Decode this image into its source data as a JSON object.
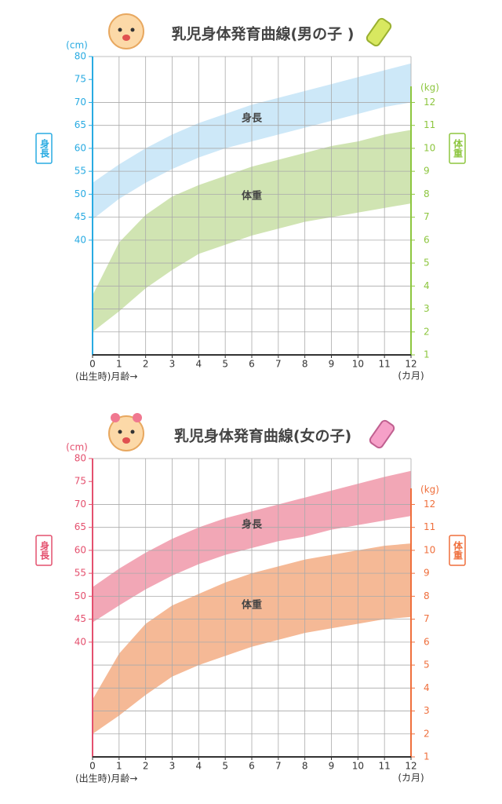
{
  "chart_data": [
    {
      "type": "band",
      "title": "乳児身体発育曲線(男の子 )",
      "xlabel": "(出生時)月齢→",
      "xunit": "(カ月)",
      "yunit": "(cm)",
      "y2unit": "(kg)",
      "ylabel": "身長",
      "y2label": "体重",
      "y_color": "#29abe2",
      "y2_color": "#8dc63f",
      "x": [
        0,
        1,
        2,
        3,
        4,
        5,
        6,
        7,
        8,
        9,
        10,
        11,
        12
      ],
      "xlim": [
        0,
        12
      ],
      "xticks": [
        0,
        1,
        2,
        3,
        4,
        5,
        6,
        7,
        8,
        9,
        10,
        11,
        12
      ],
      "ylim": [
        15,
        80
      ],
      "yticks": [
        40,
        45,
        50,
        55,
        60,
        65,
        70,
        75,
        80
      ],
      "y2lim": [
        1,
        14
      ],
      "y2ticks": [
        1,
        2,
        3,
        4,
        5,
        6,
        7,
        8,
        9,
        10,
        11,
        12
      ],
      "grid": true,
      "series": [
        {
          "name": "身長",
          "color": "#cde8f8",
          "axis": "y",
          "upper": [
            52.5,
            56.5,
            60,
            63,
            65.5,
            67.5,
            69.5,
            71,
            72.5,
            74,
            75.5,
            77,
            78.5
          ],
          "lower": [
            44.5,
            49,
            52.5,
            55.5,
            58,
            60,
            61.5,
            63,
            64.5,
            66,
            67.5,
            69,
            70
          ]
        },
        {
          "name": "体重",
          "color": "#d0e4b2",
          "axis": "y2",
          "upper": [
            3.6,
            5.9,
            7.1,
            7.9,
            8.4,
            8.8,
            9.2,
            9.5,
            9.8,
            10.1,
            10.3,
            10.6,
            10.8
          ],
          "lower": [
            2,
            2.9,
            3.9,
            4.7,
            5.4,
            5.8,
            6.2,
            6.5,
            6.8,
            7,
            7.2,
            7.4,
            7.6
          ]
        }
      ]
    },
    {
      "type": "band",
      "title": "乳児身体発育曲線(女の子)",
      "xlabel": "(出生時)月齢→",
      "xunit": "(カ月)",
      "yunit": "(cm)",
      "y2unit": "(kg)",
      "ylabel": "身長",
      "y2label": "体重",
      "y_color": "#e4506e",
      "y2_color": "#ef6f3c",
      "x": [
        0,
        1,
        2,
        3,
        4,
        5,
        6,
        7,
        8,
        9,
        10,
        11,
        12
      ],
      "xlim": [
        0,
        12
      ],
      "xticks": [
        0,
        1,
        2,
        3,
        4,
        5,
        6,
        7,
        8,
        9,
        10,
        11,
        12
      ],
      "ylim": [
        15,
        80
      ],
      "yticks": [
        40,
        45,
        50,
        55,
        60,
        65,
        70,
        75,
        80
      ],
      "y2lim": [
        1,
        14
      ],
      "y2ticks": [
        1,
        2,
        3,
        4,
        5,
        6,
        7,
        8,
        9,
        10,
        11,
        12
      ],
      "grid": true,
      "series": [
        {
          "name": "身長",
          "color": "#f2a7b6",
          "axis": "y",
          "upper": [
            52,
            56,
            59.5,
            62.5,
            65,
            67,
            68.5,
            70,
            71.5,
            73,
            74.5,
            76,
            77.3
          ],
          "lower": [
            44.3,
            48,
            51.5,
            54.5,
            57,
            59,
            60.5,
            62,
            63,
            64.5,
            65.5,
            66.5,
            67.5
          ]
        },
        {
          "name": "体重",
          "color": "#f5b996",
          "axis": "y2",
          "upper": [
            3.5,
            5.5,
            6.8,
            7.6,
            8.1,
            8.6,
            9,
            9.3,
            9.6,
            9.8,
            10,
            10.2,
            10.3
          ],
          "lower": [
            2,
            2.8,
            3.7,
            4.5,
            5,
            5.4,
            5.8,
            6.1,
            6.4,
            6.6,
            6.8,
            7,
            7.1
          ]
        }
      ]
    }
  ]
}
